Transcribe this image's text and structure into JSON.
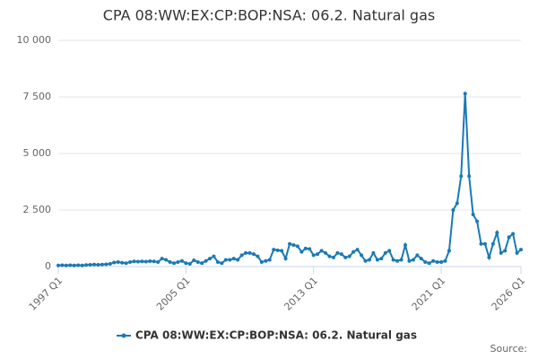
{
  "chart_data": {
    "type": "line",
    "title": "CPA 08:WW:EX:CP:BOP:NSA: 06.2. Natural gas",
    "categories": [
      "1997 Q1",
      null,
      null,
      null,
      null,
      null,
      null,
      null,
      null,
      null,
      null,
      null,
      null,
      null,
      null,
      null,
      null,
      null,
      null,
      null,
      null,
      null,
      null,
      null,
      null,
      null,
      null,
      null,
      null,
      null,
      null,
      null,
      "2005 Q1",
      null,
      null,
      null,
      null,
      null,
      null,
      null,
      null,
      null,
      null,
      null,
      null,
      null,
      null,
      null,
      null,
      null,
      null,
      null,
      null,
      null,
      null,
      null,
      null,
      null,
      null,
      null,
      null,
      null,
      null,
      null,
      "2013 Q1",
      null,
      null,
      null,
      null,
      null,
      null,
      null,
      null,
      null,
      null,
      null,
      null,
      null,
      null,
      null,
      null,
      null,
      null,
      null,
      null,
      null,
      null,
      null,
      null,
      null,
      null,
      null,
      null,
      null,
      null,
      null,
      "2021 Q1",
      null,
      null,
      null,
      null,
      null,
      null,
      null,
      null,
      null,
      null,
      null,
      null,
      null,
      null,
      null,
      null,
      null,
      null,
      null,
      "2026 Q1"
    ],
    "series": [
      {
        "name": "CPA 08:WW:EX:CP:BOP:NSA: 06.2. Natural gas",
        "color": "#1a7ab5",
        "values": [
          50,
          60,
          50,
          60,
          50,
          60,
          50,
          70,
          80,
          90,
          80,
          90,
          100,
          120,
          180,
          200,
          170,
          150,
          200,
          230,
          220,
          230,
          220,
          240,
          230,
          200,
          350,
          300,
          200,
          150,
          200,
          250,
          150,
          120,
          280,
          200,
          150,
          250,
          350,
          450,
          200,
          150,
          300,
          300,
          350,
          300,
          500,
          600,
          600,
          550,
          450,
          200,
          250,
          300,
          750,
          720,
          700,
          350,
          1000,
          950,
          900,
          650,
          800,
          780,
          500,
          550,
          700,
          600,
          450,
          400,
          600,
          550,
          400,
          450,
          650,
          750,
          500,
          250,
          300,
          600,
          300,
          350,
          600,
          700,
          300,
          250,
          300,
          950,
          250,
          300,
          500,
          350,
          200,
          150,
          250,
          200,
          200,
          250,
          700,
          2500,
          2800,
          4000,
          7650,
          4000,
          2300,
          2000,
          1000,
          1000,
          400,
          1000,
          1500,
          600,
          700,
          1300,
          1450,
          600,
          750
        ]
      }
    ],
    "ylim": [
      0,
      10000
    ],
    "yticks": [
      0,
      {
        "value": 2500,
        "label": "2 500"
      },
      {
        "value": 5000,
        "label": "5 000"
      },
      {
        "value": 7500,
        "label": "7 500"
      },
      {
        "value": 10000,
        "label": "10 000"
      }
    ],
    "grid": true,
    "source": "Source:"
  }
}
